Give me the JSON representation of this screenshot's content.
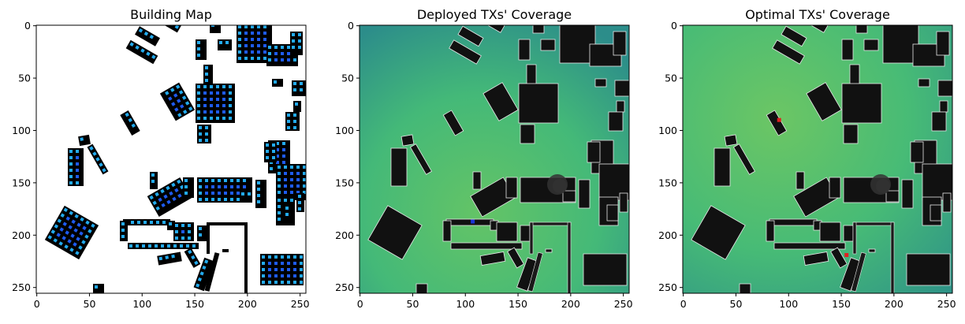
{
  "chart_data": [
    {
      "type": "heatmap",
      "title": "Building Map",
      "xlabel": "",
      "ylabel": "",
      "xlim": [
        0,
        255
      ],
      "ylim": [
        255,
        0
      ],
      "xticks": [
        "0",
        "50",
        "100",
        "150",
        "200",
        "250"
      ],
      "yticks": [
        "0",
        "50",
        "100",
        "150",
        "200",
        "250"
      ],
      "grid": false,
      "colors": {
        "background": "#ffffff",
        "building": "#000000",
        "marker_cyan": "#22aaee",
        "marker_blue": "#1e5bf0"
      }
    },
    {
      "type": "heatmap",
      "title": "Deployed TXs' Coverage",
      "xlabel": "",
      "ylabel": "",
      "xlim": [
        0,
        255
      ],
      "ylim": [
        255,
        0
      ],
      "xticks": [
        "0",
        "50",
        "100",
        "150",
        "200",
        "250"
      ],
      "yticks": [
        "0",
        "50",
        "100",
        "150",
        "200",
        "250"
      ],
      "grid": false,
      "transmitters": [
        {
          "x": 107,
          "y": 187,
          "color": "#1a33d6"
        }
      ],
      "colors": {
        "coverage_high": "#5cc46a",
        "coverage_mid": "#3fb77a",
        "coverage_low": "#2a8c8a",
        "building": "#111111"
      }
    },
    {
      "type": "heatmap",
      "title": "Optimal TXs' Coverage",
      "xlabel": "",
      "ylabel": "",
      "xlim": [
        0,
        255
      ],
      "ylim": [
        255,
        0
      ],
      "xticks": [
        "0",
        "50",
        "100",
        "150",
        "200",
        "250"
      ],
      "yticks": [
        "0",
        "50",
        "100",
        "150",
        "200",
        "250"
      ],
      "grid": false,
      "transmitters": [
        {
          "x": 91,
          "y": 90,
          "color": "#e02020"
        },
        {
          "x": 155,
          "y": 219,
          "color": "#e02020"
        }
      ],
      "colors": {
        "coverage_high": "#5cc46a",
        "coverage_mid": "#3fb77a",
        "coverage_low": "#2a8c8a",
        "building": "#111111"
      }
    }
  ]
}
